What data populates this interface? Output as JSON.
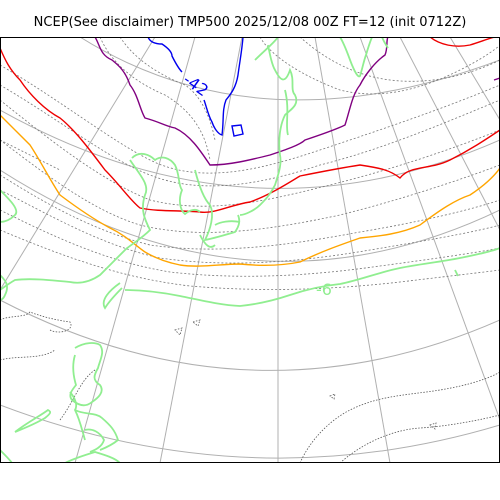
{
  "title": "NCEP(See disclaimer) TMP500 2025/12/08 00Z FT=12 (init 0712Z)",
  "contour_labels": [
    {
      "text": "-42",
      "color": "#0000ee"
    },
    {
      "text": "-6",
      "color": "#90ee90"
    }
  ],
  "colors": {
    "frame": "#000000",
    "graticule": "#b0b0b0",
    "coastline": "#555555",
    "dotted_isotherms": "#777777",
    "contour_blue": "#0000ee",
    "contour_purple": "#800080",
    "contour_red": "#ee0000",
    "contour_orange": "#ffa500",
    "contour_lightgreen": "#90ee90"
  }
}
